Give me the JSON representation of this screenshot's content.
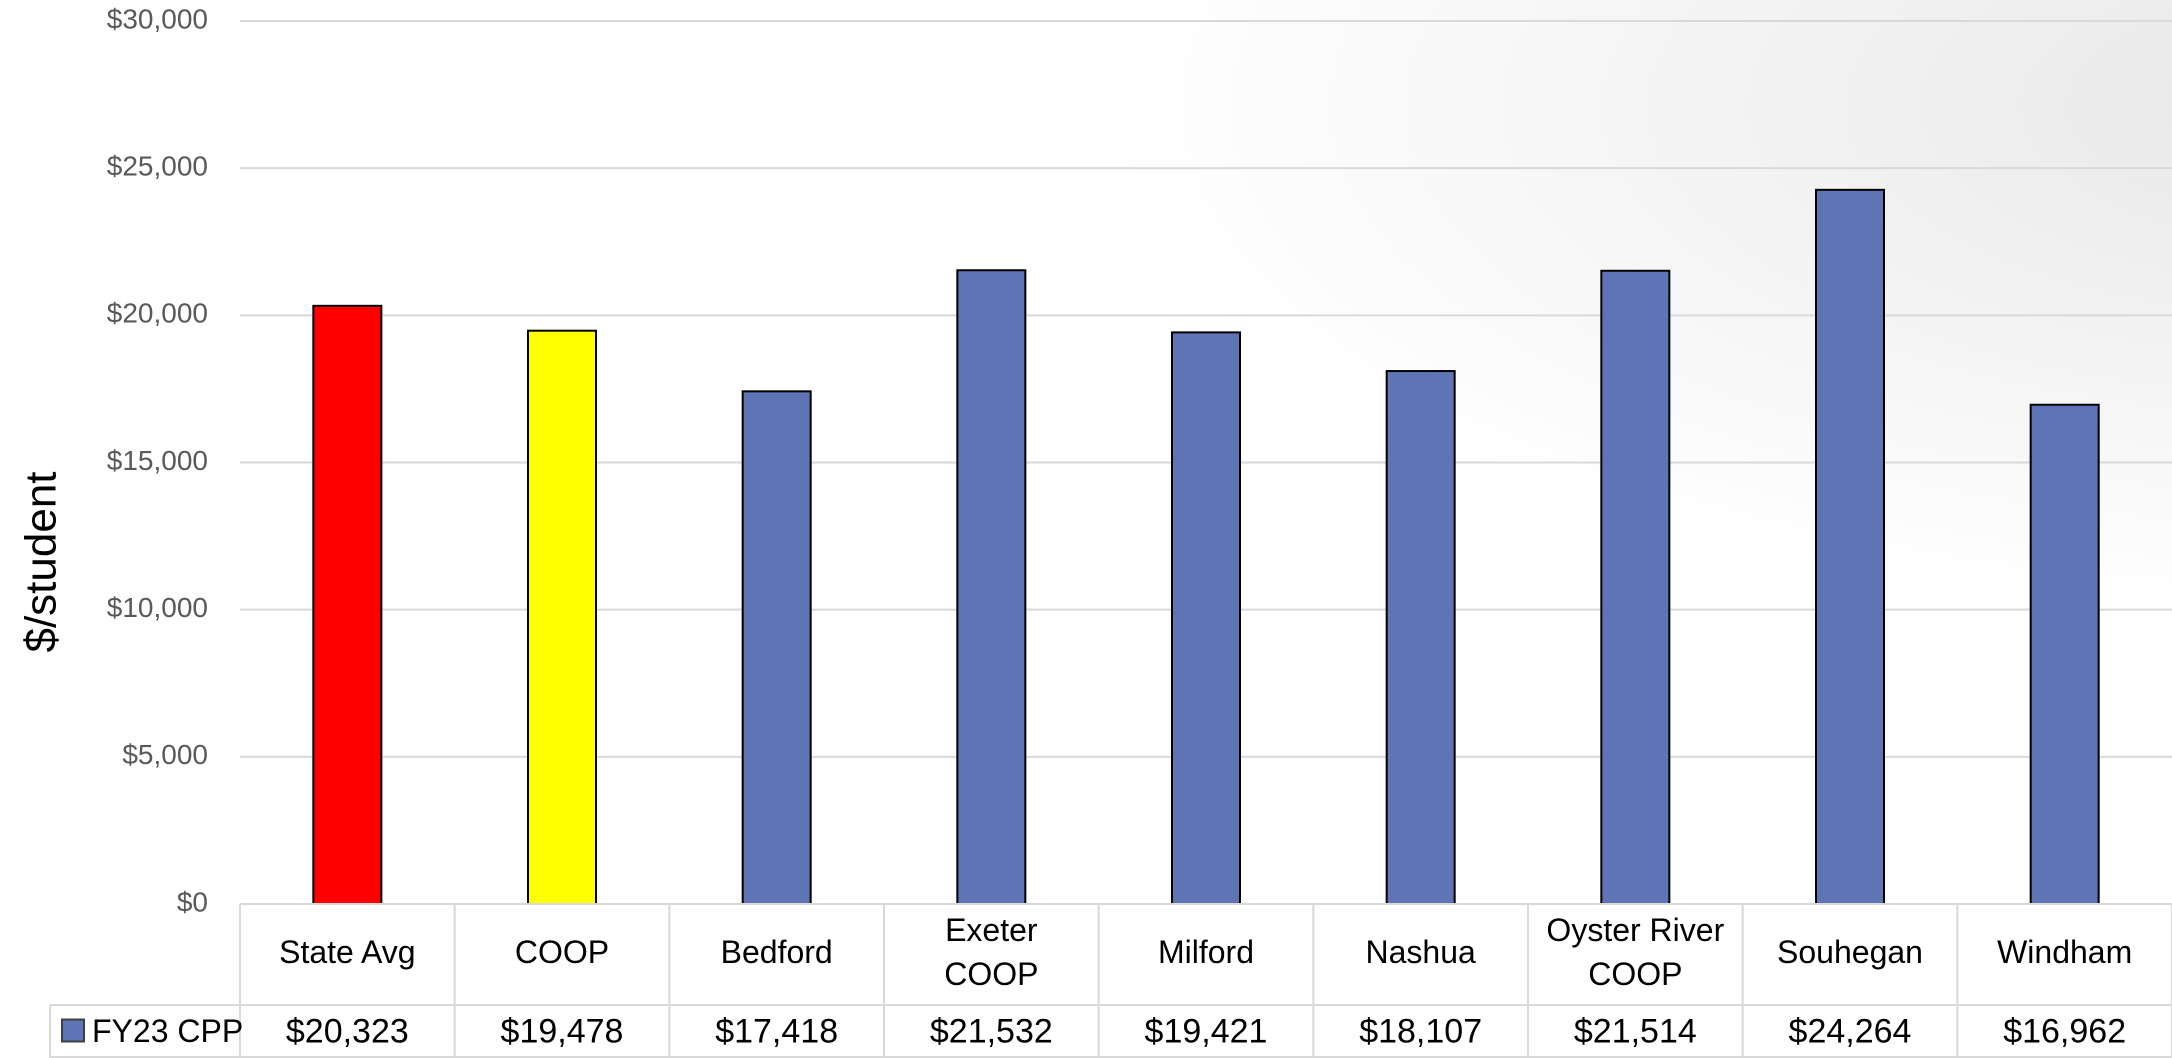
{
  "chart_data": {
    "type": "bar",
    "ylabel": "$/student",
    "ylim": [
      0,
      30000
    ],
    "y_ticks": [
      {
        "value": 0,
        "label": "$0"
      },
      {
        "value": 5000,
        "label": "$5,000"
      },
      {
        "value": 10000,
        "label": "$10,000"
      },
      {
        "value": 15000,
        "label": "$15,000"
      },
      {
        "value": 20000,
        "label": "$20,000"
      },
      {
        "value": 25000,
        "label": "$25,000"
      },
      {
        "value": 30000,
        "label": "$30,000"
      }
    ],
    "grid": true,
    "categories": [
      [
        "State Avg"
      ],
      [
        "COOP"
      ],
      [
        "Bedford"
      ],
      [
        "Exeter",
        "COOP"
      ],
      [
        "Milford"
      ],
      [
        "Nashua"
      ],
      [
        "Oyster River",
        "COOP"
      ],
      [
        "Souhegan"
      ],
      [
        "Windham"
      ]
    ],
    "series": [
      {
        "name": "FY23 CPP",
        "color": "#5e74b4",
        "values": [
          20323,
          19478,
          17418,
          21532,
          19421,
          18107,
          21514,
          24264,
          16962
        ],
        "value_labels": [
          "$20,323",
          "$19,478",
          "$17,418",
          "$21,532",
          "$19,421",
          "$18,107",
          "$21,514",
          "$24,264",
          "$16,962"
        ],
        "bar_colors": [
          "#ff0000",
          "#ffff00",
          "#5e74b4",
          "#5e74b4",
          "#5e74b4",
          "#5e74b4",
          "#5e74b4",
          "#5e74b4",
          "#5e74b4"
        ]
      }
    ],
    "data_table": true
  },
  "colors": {
    "grid": "#d9d9d9",
    "table_border": "#d9d9d9",
    "bar_outline": "#000000"
  }
}
